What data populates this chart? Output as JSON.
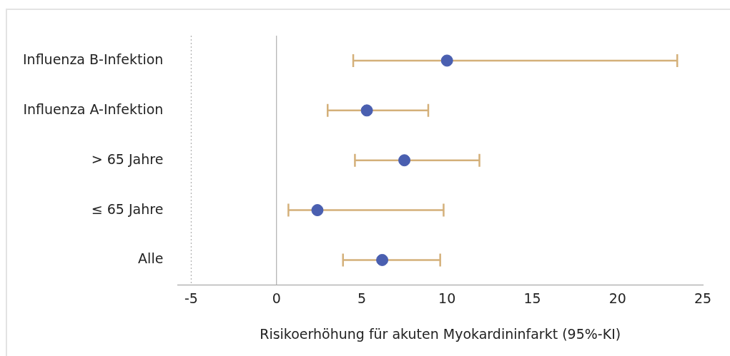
{
  "chart_data": {
    "type": "scatter",
    "orientation": "horizontal",
    "xlabel": "Risikoerhöhung für akuten Myokardininfarkt (95%-KI)",
    "categories": [
      "Influenza B-Infektion",
      "Influenza A-Infektion",
      "> 65 Jahre",
      "≤ 65 Jahre",
      "Alle"
    ],
    "series": [
      {
        "color": "#4a5fb0",
        "values": [
          10.0,
          5.3,
          7.5,
          2.4,
          6.2
        ],
        "errors": [
          [
            4.5,
            23.5
          ],
          [
            3.0,
            8.9
          ],
          [
            4.6,
            11.9
          ],
          [
            0.7,
            9.8
          ],
          [
            3.9,
            9.6
          ]
        ]
      }
    ],
    "xlim": [
      -5.8,
      25
    ],
    "xticks": [
      -5,
      0,
      5,
      10,
      15,
      20,
      25
    ],
    "ref_lines": [
      {
        "axis": "x",
        "value": 0,
        "color": "#b0b0b0",
        "line_style": "solid"
      },
      {
        "axis": "x",
        "value": -5,
        "color": "#b0b0b0",
        "line_style": "dotted"
      }
    ],
    "marker": "circle",
    "grid": false,
    "legend": false
  }
}
